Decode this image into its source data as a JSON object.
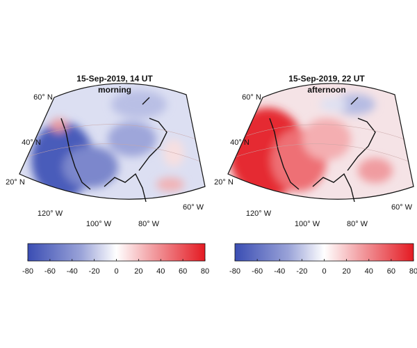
{
  "panels": [
    {
      "title": "15-Sep-2019, 14 UT",
      "subtitle": "morning",
      "lat_labels": [
        "60° N",
        "40° N",
        "20° N"
      ],
      "lon_labels": [
        "120° W",
        "100° W",
        "80° W",
        "60° W"
      ],
      "colorbar": {
        "lim": [
          -80,
          80
        ],
        "ticks": [
          -80,
          -60,
          -40,
          -20,
          0,
          20,
          40,
          60,
          80
        ]
      }
    },
    {
      "title": "15-Sep-2019, 22 UT",
      "subtitle": "afternoon",
      "lat_labels": [
        "60° N",
        "40° N",
        "20° N"
      ],
      "lon_labels": [
        "120° W",
        "100° W",
        "80° W",
        "60° W"
      ],
      "colorbar": {
        "lim": [
          -80,
          80
        ],
        "ticks": [
          -80,
          -60,
          -40,
          -20,
          0,
          20,
          40,
          60,
          80
        ]
      }
    }
  ]
}
